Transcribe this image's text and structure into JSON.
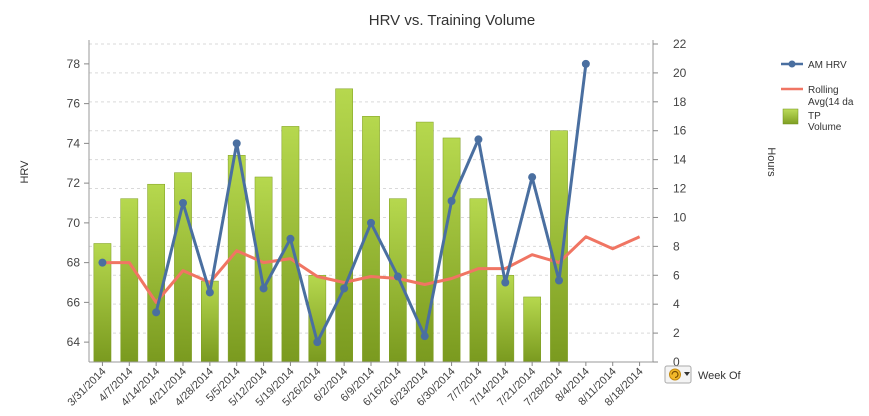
{
  "chart_data": {
    "type": "bar+line",
    "title": "HRV vs. Training Volume",
    "xlabel": "Week Of",
    "ylabel": "HRV",
    "y2label": "Hours",
    "categories": [
      "3/31/2014",
      "4/7/2014",
      "4/14/2014",
      "4/21/2014",
      "4/28/2014",
      "5/5/2014",
      "5/12/2014",
      "5/19/2014",
      "5/26/2014",
      "6/2/2014",
      "6/9/2014",
      "6/16/2014",
      "6/23/2014",
      "6/30/2014",
      "7/7/2014",
      "7/14/2014",
      "7/21/2014",
      "7/28/2014",
      "8/4/2014",
      "8/11/2014",
      "8/18/2014"
    ],
    "ylim": [
      63,
      79
    ],
    "y_ticks": [
      64,
      66,
      68,
      70,
      72,
      74,
      76,
      78
    ],
    "y2lim": [
      0,
      22
    ],
    "y2_ticks": [
      0,
      2,
      4,
      6,
      8,
      10,
      12,
      14,
      16,
      18,
      20,
      22
    ],
    "grid": true,
    "legend_position": "right",
    "series": [
      {
        "name": "AM HRV",
        "kind": "line",
        "axis": "left",
        "color": "#4a6fa0",
        "marker": true,
        "values": [
          68.0,
          null,
          65.5,
          71.0,
          66.5,
          74.0,
          66.7,
          69.2,
          64.0,
          66.7,
          70.0,
          67.3,
          64.3,
          71.1,
          74.2,
          67.0,
          72.3,
          67.1,
          78.0,
          null,
          null
        ]
      },
      {
        "name": "Rolling Avg(14 da",
        "kind": "line",
        "axis": "left",
        "color": "#f07563",
        "marker": false,
        "values": [
          68.0,
          68.0,
          66.0,
          67.6,
          67.0,
          68.6,
          68.0,
          68.2,
          67.3,
          67.0,
          67.3,
          67.2,
          66.9,
          67.2,
          67.7,
          67.7,
          68.4,
          68.0,
          69.3,
          68.7,
          69.3
        ]
      },
      {
        "name": "TP Volume",
        "kind": "bar",
        "axis": "right",
        "color": "#9bc23a",
        "values": [
          8.2,
          11.3,
          12.3,
          13.1,
          5.6,
          14.3,
          12.8,
          16.3,
          6.0,
          18.9,
          17.0,
          11.3,
          16.6,
          15.5,
          11.3,
          6.0,
          4.5,
          16.0,
          null,
          null,
          null
        ]
      }
    ]
  },
  "legend": {
    "items": [
      {
        "label_lines": [
          "AM HRV"
        ]
      },
      {
        "label_lines": [
          "Rolling",
          "Avg(14 da"
        ]
      },
      {
        "label_lines": [
          "TP",
          "Volume"
        ]
      }
    ]
  },
  "controls": {
    "week_of_label": "Week Of",
    "dropdown_icon": "refresh-dropdown-icon"
  }
}
